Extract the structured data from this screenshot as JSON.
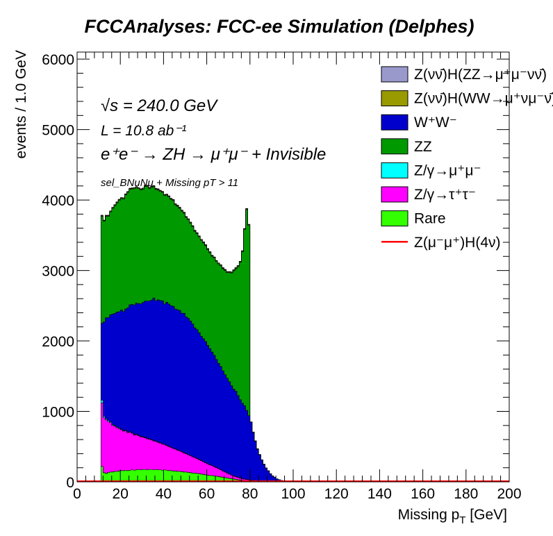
{
  "chart_data": {
    "type": "bar",
    "stacked": true,
    "title": "FCCAnalyses: FCC-ee Simulation (Delphes)",
    "xlabel": "Missing p",
    "xlabel_sub": "T",
    "xlabel_unit": "[GeV]",
    "ylabel": "events / 1.0 GeV",
    "xlim": [
      0,
      200
    ],
    "ylim": [
      0,
      6100
    ],
    "xticks": [
      0,
      20,
      40,
      60,
      80,
      100,
      120,
      140,
      160,
      180,
      200
    ],
    "yticks": [
      0,
      1000,
      2000,
      3000,
      4000,
      5000,
      6000
    ],
    "annotations": {
      "sqrt_s": "√s = 240.0 GeV",
      "lumi": "L = 10.8 ab⁻¹",
      "process": "e⁺e⁻ → ZH → μ⁺μ⁻ + Invisible",
      "selection": "sel_BNuNu + Missing pT > 11"
    },
    "legend_position": "top-right",
    "x_bin_centers": [
      11.5,
      12.5,
      13.5,
      14.5,
      15.5,
      16.5,
      17.5,
      18.5,
      19.5,
      20.5,
      21.5,
      22.5,
      23.5,
      24.5,
      25.5,
      26.5,
      27.5,
      28.5,
      29.5,
      30.5,
      31.5,
      32.5,
      33.5,
      34.5,
      35.5,
      36.5,
      37.5,
      38.5,
      39.5,
      40.5,
      41.5,
      42.5,
      43.5,
      44.5,
      45.5,
      46.5,
      47.5,
      48.5,
      49.5,
      50.5,
      51.5,
      52.5,
      53.5,
      54.5,
      55.5,
      56.5,
      57.5,
      58.5,
      59.5,
      60.5,
      61.5,
      62.5,
      63.5,
      64.5,
      65.5,
      66.5,
      67.5,
      68.5,
      69.5,
      70.5,
      71.5,
      72.5,
      73.5,
      74.5,
      75.5,
      76.5,
      77.5,
      78.5,
      79.5,
      80.5,
      81.5,
      82.5,
      83.5,
      84.5,
      85.5,
      86.5,
      87.5,
      88.5,
      89.5,
      90.5,
      91.5,
      92.5,
      93.5,
      94.5,
      95.5,
      96.5,
      97.5,
      98.5,
      99.5,
      100.5,
      101.5,
      102.5,
      103.5,
      104.5,
      105.5
    ],
    "series": [
      {
        "name": "Rare",
        "color": "#33ff00",
        "values": [
          220,
          130,
          120,
          135,
          140,
          140,
          150,
          150,
          155,
          160,
          160,
          165,
          160,
          165,
          170,
          165,
          170,
          175,
          170,
          175,
          175,
          170,
          175,
          175,
          170,
          175,
          170,
          170,
          165,
          170,
          165,
          160,
          160,
          155,
          155,
          150,
          150,
          145,
          140,
          140,
          135,
          130,
          125,
          125,
          120,
          115,
          110,
          105,
          100,
          95,
          90,
          90,
          85,
          80,
          75,
          70,
          65,
          60,
          55,
          50,
          45,
          40,
          35,
          30,
          25,
          20,
          18,
          16,
          14,
          12,
          10,
          8,
          7,
          6,
          5,
          4,
          3,
          3,
          2,
          2,
          1,
          1,
          1,
          0,
          0,
          0,
          0,
          0,
          0,
          0,
          0,
          0,
          0,
          0,
          0
        ]
      },
      {
        "name": "Z/γ→τ⁺τ⁻",
        "color": "#ff00ff",
        "values": [
          900,
          780,
          760,
          720,
          700,
          660,
          640,
          620,
          600,
          580,
          560,
          560,
          540,
          540,
          520,
          500,
          500,
          480,
          470,
          460,
          450,
          440,
          430,
          420,
          410,
          400,
          390,
          380,
          370,
          360,
          350,
          340,
          330,
          320,
          310,
          300,
          290,
          280,
          270,
          260,
          250,
          240,
          230,
          220,
          210,
          200,
          190,
          180,
          170,
          160,
          150,
          140,
          130,
          120,
          110,
          100,
          90,
          80,
          70,
          60,
          50,
          45,
          40,
          35,
          30,
          25,
          22,
          18,
          15,
          12,
          10,
          8,
          6,
          5,
          4,
          3,
          2,
          2,
          1,
          1,
          1,
          1,
          0,
          0,
          0,
          0,
          0,
          0,
          0,
          0,
          0,
          0,
          0,
          0,
          0
        ]
      },
      {
        "name": "Z/γ→μ⁺μ⁻",
        "color": "#00ffff",
        "values": [
          40,
          20,
          15,
          15,
          12,
          12,
          10,
          10,
          10,
          10,
          8,
          8,
          8,
          8,
          8,
          6,
          6,
          6,
          6,
          6,
          5,
          5,
          5,
          5,
          5,
          5,
          4,
          4,
          4,
          4,
          4,
          4,
          3,
          3,
          3,
          3,
          3,
          3,
          3,
          3,
          2,
          2,
          2,
          2,
          2,
          2,
          2,
          2,
          2,
          2,
          2,
          2,
          2,
          2,
          2,
          2,
          1,
          1,
          1,
          1,
          1,
          1,
          1,
          1,
          1,
          1,
          1,
          1,
          1,
          1,
          1,
          1,
          1,
          1,
          1,
          1,
          0,
          0,
          0,
          0,
          0,
          0,
          0,
          0,
          0,
          0,
          0,
          0,
          0,
          0,
          0,
          0,
          0,
          0,
          0
        ]
      },
      {
        "name": "W⁺W⁻",
        "color": "#0000cc",
        "values": [
          1090,
          1340,
          1435,
          1460,
          1520,
          1570,
          1590,
          1630,
          1650,
          1690,
          1690,
          1720,
          1760,
          1800,
          1820,
          1840,
          1860,
          1870,
          1880,
          1905,
          1935,
          1950,
          1955,
          1980,
          2025,
          1990,
          2020,
          2020,
          2030,
          1990,
          2030,
          2020,
          2007,
          2015,
          1985,
          1990,
          1990,
          1965,
          1980,
          1940,
          1933,
          1910,
          1885,
          1840,
          1830,
          1800,
          1765,
          1745,
          1720,
          1680,
          1650,
          1610,
          1580,
          1535,
          1495,
          1465,
          1420,
          1380,
          1345,
          1310,
          1270,
          1230,
          1210,
          1160,
          1110,
          1070,
          1040,
          980,
          910,
          820,
          680,
          560,
          450,
          370,
          300,
          240,
          190,
          150,
          110,
          80,
          60,
          40,
          30,
          20,
          15,
          10,
          6,
          4,
          2,
          2,
          1,
          1,
          0,
          0,
          0
        ]
      },
      {
        "name": "ZZ",
        "color": "#009900",
        "values": [
          1520,
          1430,
          1440,
          1440,
          1460,
          1500,
          1530,
          1550,
          1580,
          1580,
          1600,
          1620,
          1640,
          1640,
          1640,
          1650,
          1640,
          1630,
          1620,
          1610,
          1630,
          1630,
          1600,
          1600,
          1580,
          1580,
          1560,
          1550,
          1540,
          1540,
          1520,
          1520,
          1510,
          1500,
          1480,
          1470,
          1450,
          1450,
          1420,
          1410,
          1400,
          1390,
          1380,
          1370,
          1360,
          1360,
          1360,
          1360,
          1360,
          1360,
          1360,
          1360,
          1380,
          1390,
          1410,
          1430,
          1450,
          1480,
          1500,
          1550,
          1600,
          1680,
          1740,
          1830,
          1950,
          2150,
          2500,
          2850,
          2700,
          0,
          0,
          0,
          0,
          0,
          0,
          0,
          0,
          0,
          0,
          0,
          0,
          0,
          0,
          0,
          0,
          0,
          0,
          0,
          0,
          0,
          0,
          0,
          0,
          0,
          0
        ]
      },
      {
        "name": "Z(νν̄)H(WW→μ⁺νμ⁻ν̄)",
        "color": "#999900",
        "values": [
          10,
          10,
          10,
          10,
          10,
          10,
          10,
          10,
          10,
          10,
          10,
          10,
          10,
          10,
          10,
          10,
          10,
          10,
          10,
          10,
          10,
          10,
          10,
          10,
          10,
          10,
          10,
          10,
          10,
          10,
          10,
          10,
          10,
          10,
          10,
          10,
          10,
          10,
          10,
          10,
          10,
          10,
          10,
          10,
          10,
          10,
          10,
          10,
          10,
          10,
          10,
          10,
          10,
          10,
          10,
          10,
          10,
          10,
          10,
          10,
          10,
          10,
          10,
          10,
          10,
          10,
          10,
          10,
          10,
          5,
          5,
          5,
          5,
          5,
          3,
          3,
          3,
          2,
          2,
          2,
          1,
          1,
          1,
          1,
          0,
          0,
          0,
          0,
          0,
          0,
          0,
          0,
          0,
          0,
          0
        ]
      },
      {
        "name": "Z(νν̄)H(ZZ→μ⁺μ⁻νν̄)",
        "color": "#9999cc",
        "values": [
          5,
          5,
          5,
          5,
          5,
          5,
          5,
          5,
          5,
          5,
          5,
          5,
          5,
          5,
          5,
          5,
          5,
          5,
          5,
          5,
          5,
          5,
          5,
          5,
          5,
          5,
          5,
          5,
          5,
          5,
          5,
          5,
          5,
          5,
          5,
          5,
          5,
          5,
          5,
          5,
          5,
          5,
          5,
          5,
          5,
          5,
          5,
          5,
          5,
          5,
          5,
          5,
          5,
          5,
          5,
          5,
          5,
          5,
          5,
          5,
          5,
          5,
          5,
          5,
          5,
          5,
          5,
          5,
          5,
          2,
          2,
          2,
          2,
          2,
          1,
          1,
          1,
          1,
          1,
          1,
          0,
          0,
          0,
          0,
          0,
          0,
          0,
          0,
          0,
          0,
          0,
          0,
          0,
          0,
          0
        ]
      }
    ],
    "signal": {
      "name": "Z(μ⁻μ⁺)H(4ν)",
      "color": "#ff0000",
      "style": "line",
      "value_level": 8
    },
    "legend": [
      {
        "label": "Z(νν̄)H(ZZ→μ⁺μ⁻νν̄)",
        "color": "#9999cc",
        "kind": "box"
      },
      {
        "label": "Z(νν̄)H(WW→μ⁺νμ⁻ν̄)",
        "color": "#999900",
        "kind": "box"
      },
      {
        "label": "W⁺W⁻",
        "color": "#0000cc",
        "kind": "box"
      },
      {
        "label": "ZZ",
        "color": "#009900",
        "kind": "box"
      },
      {
        "label": "Z/γ→μ⁺μ⁻",
        "color": "#00ffff",
        "kind": "box"
      },
      {
        "label": "Z/γ→τ⁺τ⁻",
        "color": "#ff00ff",
        "kind": "box"
      },
      {
        "label": "Rare",
        "color": "#33ff00",
        "kind": "box"
      },
      {
        "label": "Z(μ⁻μ⁺)H(4ν)",
        "color": "#ff0000",
        "kind": "line"
      }
    ]
  }
}
